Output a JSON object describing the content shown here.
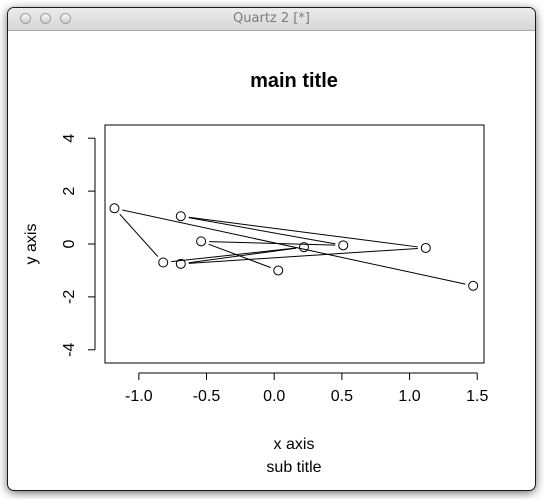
{
  "window": {
    "title": "Quartz 2 [*]"
  },
  "chart_data": {
    "type": "line",
    "markers": "open-circle",
    "title": "main title",
    "subtitle": "sub title",
    "xlabel": "x axis",
    "ylabel": "y axis",
    "xlim": [
      -1.25,
      1.55
    ],
    "ylim": [
      -4.5,
      4.5
    ],
    "x_ticks": [
      -1.0,
      -0.5,
      0.0,
      0.5,
      1.0,
      1.5
    ],
    "x_tick_labels": [
      "-1.0",
      "-0.5",
      "0.0",
      "0.5",
      "1.0",
      "1.5"
    ],
    "y_ticks": [
      -4,
      -2,
      0,
      2,
      4
    ],
    "y_tick_labels": [
      "-4",
      "-2",
      "0",
      "2",
      "4"
    ],
    "grid": false,
    "x": [
      1.47,
      -1.18,
      -0.82,
      0.22,
      -0.69,
      1.12,
      -0.69,
      0.51,
      -0.54,
      0.03
    ],
    "y": [
      -1.58,
      1.35,
      -0.7,
      -0.12,
      -0.75,
      -0.15,
      1.05,
      -0.05,
      0.1,
      -1.0
    ]
  }
}
